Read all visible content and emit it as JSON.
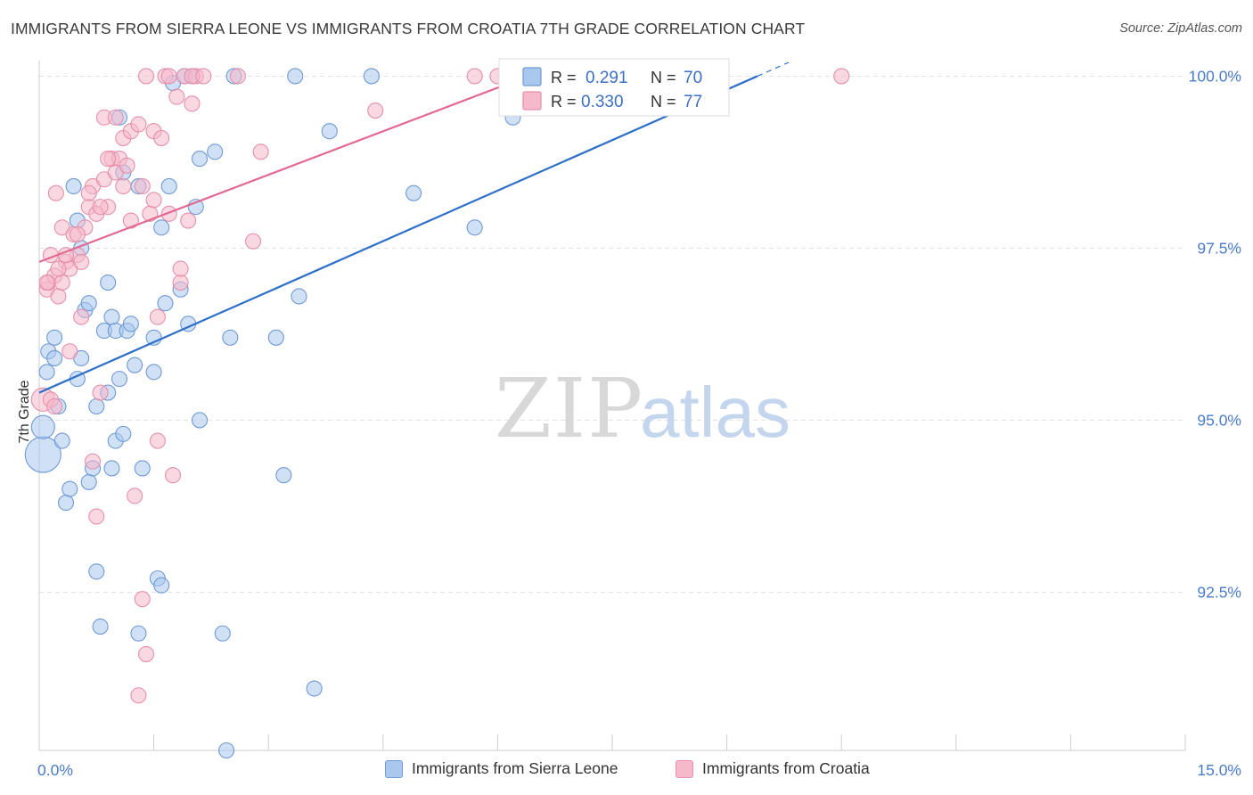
{
  "title": "IMMIGRANTS FROM SIERRA LEONE VS IMMIGRANTS FROM CROATIA 7TH GRADE CORRELATION CHART",
  "source": "Source: ZipAtlas.com",
  "watermark": {
    "zip": "ZIP",
    "atlas": "atlas"
  },
  "legend": {
    "r_label": "R =",
    "n_label": "N =",
    "series": [
      {
        "r": "0.291",
        "n": "70"
      },
      {
        "r": "0.330",
        "n": "77"
      }
    ]
  },
  "colors": {
    "blue_fill": "#aac8ee",
    "blue_stroke": "#6f9ad6",
    "blue_line": "#2e6fc8",
    "pink_fill": "#f6b8cb",
    "pink_stroke": "#e590ab",
    "pink_line": "#e26a92",
    "grid": "#e2e2e2",
    "tick_label": "#4a7cc8"
  },
  "chart_data": {
    "type": "scatter",
    "ylabel": "7th Grade",
    "xlim": [
      0.0,
      15.0
    ],
    "ylim": [
      90.2,
      100.2
    ],
    "x_tick_labels": [
      {
        "value": 0.0,
        "label": "0.0%"
      },
      {
        "value": 15.0,
        "label": "15.0%"
      }
    ],
    "y_tick_labels": [
      {
        "value": 100.0,
        "label": "100.0%"
      },
      {
        "value": 97.5,
        "label": "97.5%"
      },
      {
        "value": 95.0,
        "label": "95.0%"
      },
      {
        "value": 92.5,
        "label": "92.5%"
      }
    ],
    "grid": true,
    "legend_position": "top-center",
    "series": [
      {
        "name": "Immigrants from Sierra Leone",
        "color": "blue",
        "trend": {
          "x0": 0.0,
          "y0": 95.4,
          "x1": 9.4,
          "y1": 100.0,
          "dashed_to_x": 15.0
        },
        "points": [
          [
            0.05,
            94.5,
            3
          ],
          [
            0.05,
            94.9,
            2
          ],
          [
            0.1,
            95.7,
            1
          ],
          [
            0.12,
            96.0,
            1
          ],
          [
            0.2,
            95.9,
            1
          ],
          [
            0.2,
            96.2,
            1
          ],
          [
            0.25,
            95.2,
            1
          ],
          [
            0.3,
            94.7,
            1
          ],
          [
            0.35,
            93.8,
            1
          ],
          [
            0.4,
            94.0,
            1
          ],
          [
            0.45,
            98.4,
            1
          ],
          [
            0.5,
            97.9,
            1
          ],
          [
            0.55,
            97.5,
            1
          ],
          [
            0.5,
            95.6,
            1
          ],
          [
            0.55,
            95.9,
            1
          ],
          [
            0.6,
            96.6,
            1
          ],
          [
            0.65,
            96.7,
            1
          ],
          [
            0.65,
            94.1,
            1
          ],
          [
            0.7,
            94.3,
            1
          ],
          [
            0.75,
            95.2,
            1
          ],
          [
            0.75,
            92.8,
            1
          ],
          [
            0.8,
            92.0,
            1
          ],
          [
            0.85,
            96.3,
            1
          ],
          [
            0.9,
            95.4,
            1
          ],
          [
            0.9,
            97.0,
            1
          ],
          [
            0.95,
            94.3,
            1
          ],
          [
            0.95,
            96.5,
            1
          ],
          [
            1.0,
            94.7,
            1
          ],
          [
            1.0,
            96.3,
            1
          ],
          [
            1.05,
            95.6,
            1
          ],
          [
            1.05,
            99.4,
            1
          ],
          [
            1.1,
            94.8,
            1
          ],
          [
            1.1,
            98.6,
            1
          ],
          [
            1.15,
            96.3,
            1
          ],
          [
            1.2,
            96.4,
            1
          ],
          [
            1.25,
            95.8,
            1
          ],
          [
            1.3,
            98.4,
            1
          ],
          [
            1.3,
            91.9,
            1
          ],
          [
            1.35,
            94.3,
            1
          ],
          [
            1.5,
            95.7,
            1
          ],
          [
            1.5,
            96.2,
            1
          ],
          [
            1.55,
            92.7,
            1
          ],
          [
            1.6,
            92.6,
            1
          ],
          [
            1.6,
            97.8,
            1
          ],
          [
            1.65,
            96.7,
            1
          ],
          [
            1.7,
            98.4,
            1
          ],
          [
            1.75,
            99.9,
            1
          ],
          [
            1.85,
            96.9,
            1
          ],
          [
            1.9,
            100.0,
            1
          ],
          [
            1.95,
            96.4,
            1
          ],
          [
            2.0,
            100.0,
            1
          ],
          [
            2.05,
            98.1,
            1
          ],
          [
            2.1,
            98.8,
            1
          ],
          [
            2.1,
            95.0,
            1
          ],
          [
            2.3,
            98.9,
            1
          ],
          [
            2.4,
            91.9,
            1
          ],
          [
            2.45,
            90.2,
            1
          ],
          [
            2.5,
            96.2,
            1
          ],
          [
            2.55,
            100.0,
            1
          ],
          [
            3.1,
            96.2,
            1
          ],
          [
            3.2,
            94.2,
            1
          ],
          [
            3.35,
            100.0,
            1
          ],
          [
            3.4,
            96.8,
            1
          ],
          [
            3.6,
            91.1,
            1
          ],
          [
            3.8,
            99.2,
            1
          ],
          [
            4.35,
            100.0,
            1
          ],
          [
            4.9,
            98.3,
            1
          ],
          [
            5.7,
            97.8,
            1
          ],
          [
            6.2,
            99.4,
            1
          ],
          [
            7.2,
            100.0,
            1
          ]
        ]
      },
      {
        "name": "Immigrants from Croatia",
        "color": "pink",
        "trend": {
          "x0": 0.0,
          "y0": 97.3,
          "x1": 6.4,
          "y1": 100.0
        },
        "points": [
          [
            0.05,
            95.3,
            2
          ],
          [
            0.1,
            96.9,
            1
          ],
          [
            0.12,
            97.0,
            1
          ],
          [
            0.15,
            97.4,
            1
          ],
          [
            0.2,
            97.1,
            1
          ],
          [
            0.22,
            98.3,
            1
          ],
          [
            0.25,
            96.8,
            1
          ],
          [
            0.3,
            97.0,
            1
          ],
          [
            0.3,
            97.8,
            1
          ],
          [
            0.35,
            97.3,
            1
          ],
          [
            0.4,
            97.2,
            1
          ],
          [
            0.4,
            96.0,
            1
          ],
          [
            0.45,
            97.7,
            1
          ],
          [
            0.5,
            97.4,
            1
          ],
          [
            0.55,
            97.3,
            1
          ],
          [
            0.55,
            96.5,
            1
          ],
          [
            0.6,
            97.8,
            1
          ],
          [
            0.65,
            98.1,
            1
          ],
          [
            0.7,
            94.4,
            1
          ],
          [
            0.7,
            98.4,
            1
          ],
          [
            0.75,
            93.6,
            1
          ],
          [
            0.75,
            98.0,
            1
          ],
          [
            0.8,
            95.4,
            1
          ],
          [
            0.85,
            98.5,
            1
          ],
          [
            0.85,
            99.4,
            1
          ],
          [
            0.9,
            98.1,
            1
          ],
          [
            0.95,
            98.8,
            1
          ],
          [
            1.0,
            99.4,
            1
          ],
          [
            1.05,
            98.8,
            1
          ],
          [
            1.1,
            99.1,
            1
          ],
          [
            1.1,
            98.4,
            1
          ],
          [
            1.2,
            99.2,
            1
          ],
          [
            1.25,
            93.9,
            1
          ],
          [
            1.3,
            99.3,
            1
          ],
          [
            1.35,
            92.4,
            1
          ],
          [
            1.35,
            98.4,
            1
          ],
          [
            1.4,
            91.6,
            1
          ],
          [
            1.45,
            98.0,
            1
          ],
          [
            1.5,
            99.2,
            1
          ],
          [
            1.55,
            96.5,
            1
          ],
          [
            1.6,
            99.1,
            1
          ],
          [
            1.65,
            100.0,
            1
          ],
          [
            1.7,
            98.0,
            1
          ],
          [
            1.75,
            94.2,
            1
          ],
          [
            1.8,
            99.7,
            1
          ],
          [
            1.85,
            97.0,
            1
          ],
          [
            1.9,
            100.0,
            1
          ],
          [
            1.95,
            97.9,
            1
          ],
          [
            2.0,
            99.6,
            1
          ],
          [
            2.05,
            100.0,
            1
          ],
          [
            0.15,
            95.3,
            1
          ],
          [
            0.2,
            95.2,
            1
          ],
          [
            0.25,
            97.2,
            1
          ],
          [
            0.5,
            97.7,
            1
          ],
          [
            0.65,
            98.3,
            1
          ],
          [
            0.8,
            98.1,
            1
          ],
          [
            0.9,
            98.8,
            1
          ],
          [
            1.0,
            98.6,
            1
          ],
          [
            1.15,
            98.7,
            1
          ],
          [
            1.2,
            97.9,
            1
          ],
          [
            1.3,
            91.0,
            1
          ],
          [
            1.4,
            100.0,
            1
          ],
          [
            1.5,
            98.2,
            1
          ],
          [
            1.55,
            94.7,
            1
          ],
          [
            1.7,
            100.0,
            1
          ],
          [
            1.85,
            97.2,
            1
          ],
          [
            2.0,
            100.0,
            1
          ],
          [
            2.15,
            100.0,
            1
          ],
          [
            2.6,
            100.0,
            1
          ],
          [
            2.8,
            97.6,
            1
          ],
          [
            2.9,
            98.9,
            1
          ],
          [
            4.4,
            99.5,
            1
          ],
          [
            5.7,
            100.0,
            1
          ],
          [
            6.0,
            100.0,
            1
          ],
          [
            10.5,
            100.0,
            1
          ],
          [
            0.1,
            97.0,
            1
          ],
          [
            0.35,
            97.4,
            1
          ]
        ]
      }
    ]
  }
}
